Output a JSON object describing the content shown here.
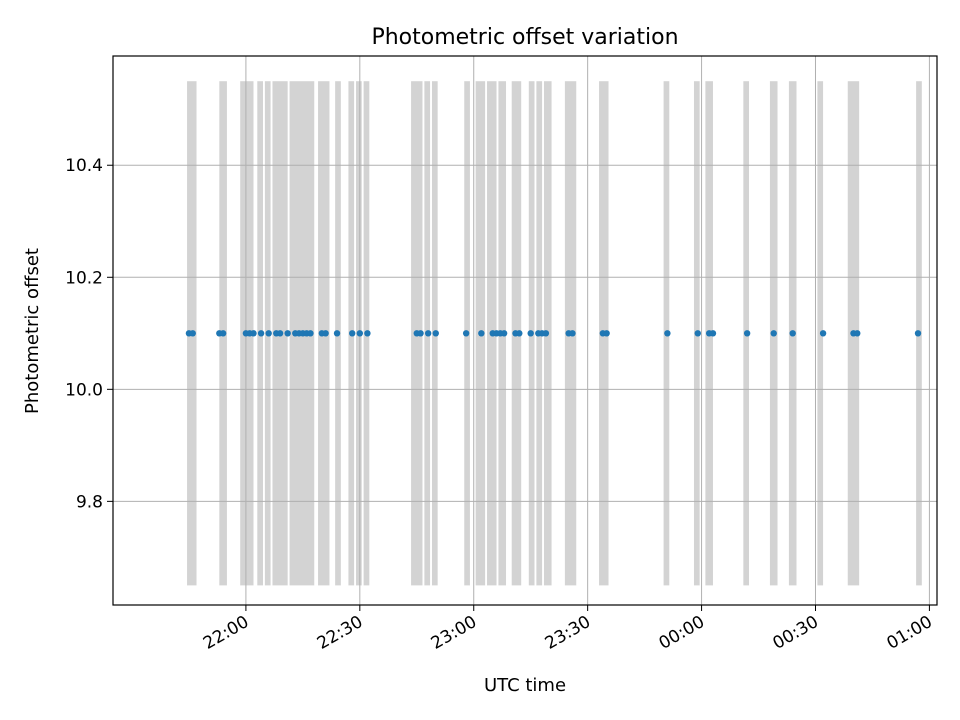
{
  "chart_data": {
    "type": "scatter",
    "title": "Photometric offset variation",
    "xlabel": "UTC time",
    "ylabel": "Photometric offset",
    "x_axis": {
      "kind": "time",
      "range": [
        "21:25",
        "01:02"
      ],
      "ticks": [
        "22:00",
        "22:30",
        "23:00",
        "23:30",
        "00:00",
        "00:30",
        "01:00"
      ],
      "tick_label_rotation": 30
    },
    "ylim": [
      9.615,
      10.595
    ],
    "y_ticks": [
      9.8,
      10.0,
      10.2,
      10.4
    ],
    "grid": true,
    "marker_color": "#1f77b4",
    "band_color": "#d3d3d3",
    "band_y_range": [
      9.65,
      10.55
    ],
    "series": [
      {
        "x": [
          "21:45",
          "21:46",
          "21:53",
          "21:54",
          "22:00",
          "22:01",
          "22:02",
          "22:04",
          "22:06",
          "22:08",
          "22:09",
          "22:11",
          "22:13",
          "22:14",
          "22:15",
          "22:16",
          "22:17",
          "22:20",
          "22:21",
          "22:24",
          "22:28",
          "22:30",
          "22:32",
          "22:45",
          "22:46",
          "22:48",
          "22:50",
          "22:58",
          "23:02",
          "23:05",
          "23:06",
          "23:07",
          "23:08",
          "23:11",
          "23:12",
          "23:15",
          "23:17",
          "23:18",
          "23:19",
          "23:25",
          "23:26",
          "23:34",
          "23:35",
          "23:51",
          "23:59",
          "24:02",
          "24:03",
          "24:12",
          "24:19",
          "24:24",
          "24:32",
          "24:40",
          "24:41",
          "24:57"
        ],
        "y": [
          10.1,
          10.1,
          10.1,
          10.1,
          10.1,
          10.1,
          10.1,
          10.1,
          10.1,
          10.1,
          10.1,
          10.1,
          10.1,
          10.1,
          10.1,
          10.1,
          10.1,
          10.1,
          10.1,
          10.1,
          10.1,
          10.1,
          10.1,
          10.1,
          10.1,
          10.1,
          10.1,
          10.1,
          10.1,
          10.1,
          10.1,
          10.1,
          10.1,
          10.1,
          10.1,
          10.1,
          10.1,
          10.1,
          10.1,
          10.1,
          10.1,
          10.1,
          10.1,
          10.1,
          10.1,
          10.1,
          10.1,
          10.1,
          10.1,
          10.1,
          10.1,
          10.1,
          10.1,
          10.1
        ]
      }
    ],
    "bands": [
      [
        "21:44:30",
        "21:47:00"
      ],
      [
        "21:53:00",
        "21:55:00"
      ],
      [
        "21:58:30",
        "22:02:00"
      ],
      [
        "22:03:00",
        "22:04:30"
      ],
      [
        "22:05:00",
        "22:06:30"
      ],
      [
        "22:07:00",
        "22:11:00"
      ],
      [
        "22:11:30",
        "22:18:00"
      ],
      [
        "22:19:00",
        "22:22:00"
      ],
      [
        "22:23:30",
        "22:25:00"
      ],
      [
        "22:27:00",
        "22:28:30"
      ],
      [
        "22:29:00",
        "22:30:30"
      ],
      [
        "22:31:00",
        "22:32:30"
      ],
      [
        "22:43:30",
        "22:46:30"
      ],
      [
        "22:47:00",
        "22:48:30"
      ],
      [
        "22:49:00",
        "22:50:30"
      ],
      [
        "22:57:30",
        "22:59:00"
      ],
      [
        "23:00:30",
        "23:03:00"
      ],
      [
        "23:03:30",
        "23:06:00"
      ],
      [
        "23:06:30",
        "23:08:30"
      ],
      [
        "23:10:00",
        "23:12:30"
      ],
      [
        "23:14:30",
        "23:16:00"
      ],
      [
        "23:16:30",
        "23:18:00"
      ],
      [
        "23:18:30",
        "23:20:30"
      ],
      [
        "23:24:00",
        "23:27:00"
      ],
      [
        "23:33:00",
        "23:35:30"
      ],
      [
        "23:50:00",
        "23:51:30"
      ],
      [
        "23:58:00",
        "23:59:30"
      ],
      [
        "24:01:00",
        "24:03:00"
      ],
      [
        "24:11:00",
        "24:12:30"
      ],
      [
        "24:18:00",
        "24:20:00"
      ],
      [
        "24:23:00",
        "24:25:00"
      ],
      [
        "24:30:30",
        "24:32:00"
      ],
      [
        "24:38:30",
        "24:41:30"
      ],
      [
        "24:56:30",
        "24:58:00"
      ]
    ]
  }
}
